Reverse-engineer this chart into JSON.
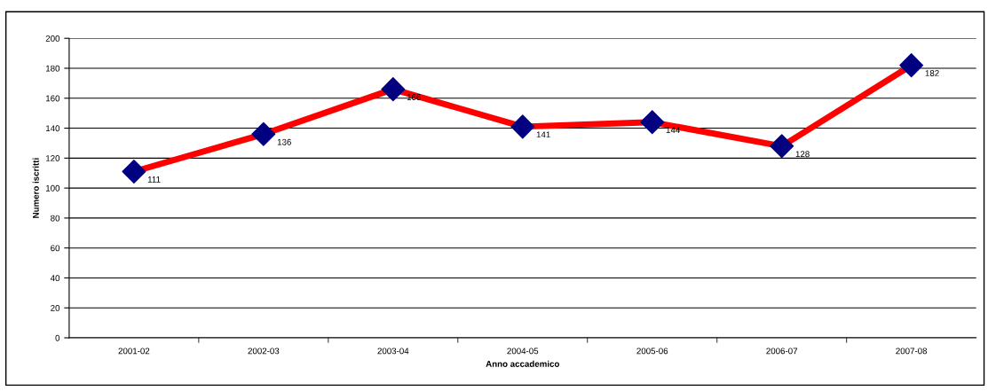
{
  "chart_data": {
    "type": "line",
    "xlabel": "Anno accademico",
    "ylabel": "Numero iscritti",
    "categories": [
      "2001-02",
      "2002-03",
      "2003-04",
      "2004-05",
      "2005-06",
      "2006-07",
      "2007-08"
    ],
    "series": [
      {
        "color": "#ff0000",
        "colors": [
          "#000080",
          "#000080",
          "#000080",
          "#000080",
          "#000080",
          "#000080",
          "#000080"
        ],
        "values": [
          111,
          136,
          166,
          141,
          144,
          128,
          182
        ]
      }
    ],
    "marker": "diamond",
    "line_style": "solid",
    "data_labels": true,
    "grid": "y",
    "legend": false,
    "ylim": [
      0,
      200
    ],
    "yticks": [
      0,
      20,
      40,
      60,
      80,
      100,
      120,
      140,
      160,
      180,
      200
    ]
  }
}
